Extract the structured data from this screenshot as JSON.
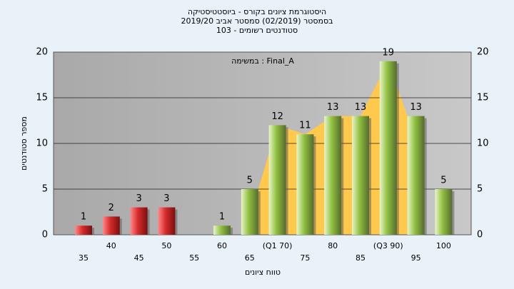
{
  "chart_data": {
    "type": "bar",
    "title": [
      "היסטוגרמת ציונים בקורס - ביוסטטיסטיקה",
      "בסמסטר (02/2019) סמסטר אביב 2019/20",
      "סטודנטים רשומים - 103"
    ],
    "annotation": "במשימה : Final_A",
    "y_label": "מספר סטודנטים",
    "x_label": "טווח ציונים",
    "categories": [
      "35",
      "40",
      "45",
      "50",
      "55",
      "60",
      "65",
      "(Q1 70)",
      "75",
      "80",
      "85",
      "(Q3 90)",
      "95",
      "100"
    ],
    "values": [
      1,
      2,
      3,
      3,
      null,
      1,
      5,
      12,
      11,
      13,
      13,
      19,
      13,
      5
    ],
    "colors": [
      "#d42a2a",
      "#d42a2a",
      "#d42a2a",
      "#d42a2a",
      "#d42a2a",
      "#8fbf3f",
      "#8fbf3f",
      "#8fbf3f",
      "#8fbf3f",
      "#8fbf3f",
      "#8fbf3f",
      "#8fbf3f",
      "#8fbf3f",
      "#8fbf3f"
    ],
    "area_color": "#ffc94d",
    "ylim": [
      0,
      20
    ],
    "yticks": [
      0,
      5,
      10,
      15,
      20
    ],
    "grid": true
  }
}
